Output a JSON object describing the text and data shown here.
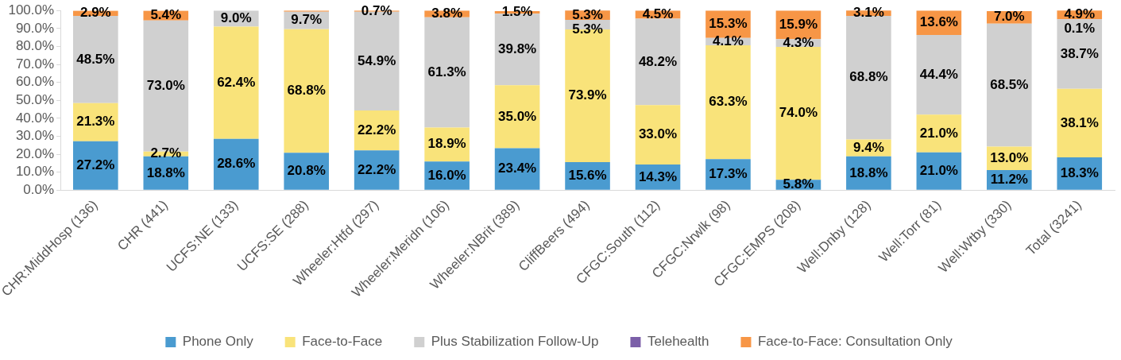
{
  "chart_data": {
    "type": "bar",
    "stacked": true,
    "categories": [
      "CHR:MiddHosp (136)",
      "CHR (441)",
      "UCFS:NE (133)",
      "UCFS:SE (288)",
      "Wheeler:Htfd (297)",
      "Wheeler:Meridn (106)",
      "Wheeler:NBrit (389)",
      "CliffBeers (494)",
      "CFGC:South (112)",
      "CFGC:Nrwlk (98)",
      "CFGC:EMPS (208)",
      "Well:Dnby (128)",
      "Well:Torr (81)",
      "Well:Wtby (330)",
      "Total (3241)"
    ],
    "series": [
      {
        "name": "Phone Only",
        "color": "#4a9bd0",
        "values": [
          27.2,
          18.8,
          28.6,
          20.8,
          22.2,
          16.0,
          23.4,
          15.6,
          14.3,
          17.3,
          5.8,
          18.8,
          21.0,
          11.2,
          18.3
        ],
        "value_labels": [
          "27.2%",
          "18.8%",
          "28.6%",
          "20.8%",
          "22.2%",
          "16.0%",
          "23.4%",
          "15.6%",
          "14.3%",
          "17.3%",
          "5.8%",
          "18.8%",
          "21.0%",
          "11.2%",
          "18.3%"
        ]
      },
      {
        "name": "Face-to-Face",
        "color": "#f9e37a",
        "values": [
          21.3,
          2.7,
          62.4,
          68.8,
          22.2,
          18.9,
          35.0,
          73.9,
          33.0,
          63.3,
          74.0,
          9.4,
          21.0,
          13.0,
          38.1
        ],
        "value_labels": [
          "21.3%",
          "2.7%",
          "62.4%",
          "68.8%",
          "22.2%",
          "18.9%",
          "35.0%",
          "73.9%",
          "33.0%",
          "63.3%",
          "74.0%",
          "9.4%",
          "21.0%",
          "13.0%",
          "38.1%"
        ]
      },
      {
        "name": "Plus Stabilization Follow-Up",
        "color": "#d0d0d0",
        "values": [
          48.5,
          73.0,
          9.0,
          9.7,
          54.9,
          61.3,
          39.8,
          5.3,
          48.2,
          4.1,
          4.3,
          68.8,
          44.4,
          68.5,
          38.7
        ],
        "value_labels": [
          "48.5%",
          "73.0%",
          "9.0%",
          "9.7%",
          "54.9%",
          "61.3%",
          "39.8%",
          "5.3%",
          "48.2%",
          "4.1%",
          "4.3%",
          "68.8%",
          "44.4%",
          "68.5%",
          "38.7%"
        ]
      },
      {
        "name": "Telehealth",
        "color": "#7b5fa8",
        "values": [
          null,
          null,
          null,
          null,
          null,
          null,
          null,
          null,
          null,
          null,
          null,
          null,
          null,
          null,
          0.1
        ],
        "value_labels": [
          null,
          null,
          null,
          null,
          null,
          null,
          null,
          null,
          null,
          null,
          null,
          null,
          null,
          null,
          "0.1%"
        ]
      },
      {
        "name": "Face-to-Face: Consultation Only",
        "color": "#f79646",
        "values": [
          2.9,
          5.4,
          null,
          0.7,
          0.7,
          3.8,
          1.5,
          5.3,
          4.5,
          15.3,
          15.9,
          3.1,
          13.6,
          7.0,
          4.9
        ],
        "value_labels": [
          "2.9%",
          "5.4%",
          null,
          null,
          "0.7%",
          "3.8%",
          "1.5%",
          "5.3%",
          "4.5%",
          "15.3%",
          "15.9%",
          "3.1%",
          "13.6%",
          "7.0%",
          "4.9%"
        ]
      }
    ],
    "ylim": [
      0,
      100
    ],
    "yticks": [
      {
        "value": 0,
        "label": "0.0%"
      },
      {
        "value": 10,
        "label": "10.0%"
      },
      {
        "value": 20,
        "label": "20.0%"
      },
      {
        "value": 30,
        "label": "30.0%"
      },
      {
        "value": 40,
        "label": "40.0%"
      },
      {
        "value": 50,
        "label": "50.0%"
      },
      {
        "value": 60,
        "label": "60.0%"
      },
      {
        "value": 70,
        "label": "70.0%"
      },
      {
        "value": 80,
        "label": "80.0%"
      },
      {
        "value": 90,
        "label": "90.0%"
      },
      {
        "value": 100,
        "label": "100.0%"
      }
    ],
    "grid": false,
    "legend": "bottom"
  }
}
